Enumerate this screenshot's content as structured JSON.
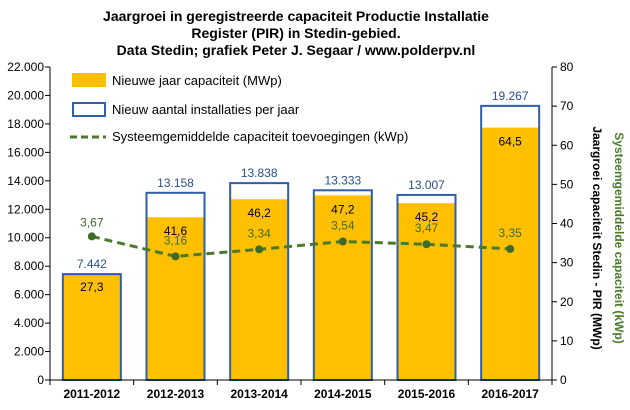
{
  "chart_data": {
    "type": "bar",
    "title_lines": [
      "Jaargroei in geregistreerde capaciteit Productie Installatie",
      "Register (PIR) in Stedin-gebied.",
      "Data Stedin; grafiek Peter J. Segaar / www.polderpv.nl"
    ],
    "categories": [
      "2011-2012",
      "2012-2013",
      "2013-2014",
      "2014-2015",
      "2015-2016",
      "2016-2017"
    ],
    "left_axis": {
      "ylim": [
        0,
        22000
      ],
      "ticks": [
        "0",
        "2.000",
        "4.000",
        "6.000",
        "8.000",
        "10.000",
        "12.000",
        "14.000",
        "16.000",
        "18.000",
        "20.000",
        "22.000"
      ]
    },
    "right_axis": {
      "ylim": [
        0,
        80
      ],
      "ticks": [
        "0",
        "10",
        "20",
        "30",
        "40",
        "50",
        "60",
        "70",
        "80"
      ],
      "label": "Jaargroei capaciteit Stedin - PIR (MWp)"
    },
    "far_right_label": "Systeemgemiddelde capaciteit (kWp)",
    "series": [
      {
        "name": "Nieuwe jaar capaciteit (MWp)",
        "axis": "right",
        "kind": "bar-filled",
        "color": "#ffc000",
        "values": [
          27.3,
          41.6,
          46.2,
          47.2,
          45.2,
          64.5
        ],
        "labels": [
          "27,3",
          "41,6",
          "46,2",
          "47,2",
          "45,2",
          "64,5"
        ]
      },
      {
        "name": "Nieuw aantal installaties per jaar",
        "axis": "left",
        "kind": "bar-outline",
        "color": "#2e5fa8",
        "values": [
          7442,
          13158,
          13838,
          13333,
          13007,
          19267
        ],
        "labels": [
          "7.442",
          "13.158",
          "13.838",
          "13.333",
          "13.007",
          "19.267"
        ]
      },
      {
        "name": "Systeemgemiddelde capaciteit toevoegingen (kWp)",
        "axis": "right",
        "kind": "line-dashed",
        "color": "#4a7a2a",
        "values": [
          3.67,
          3.16,
          3.34,
          3.54,
          3.47,
          3.35
        ],
        "labels": [
          "3,67",
          "3,16",
          "3,34",
          "3,54",
          "3,47",
          "3,35"
        ]
      }
    ],
    "legend_position": "top-left",
    "grid": false
  }
}
